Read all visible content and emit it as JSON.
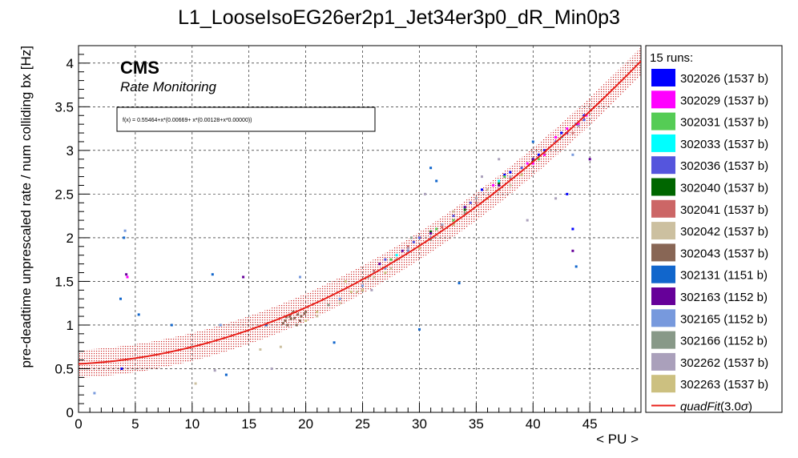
{
  "chart_data": {
    "type": "scatter",
    "title": "L1_LooseIsoEG26er2p1_Jet34er3p0_dR_Min0p3",
    "xlabel": "< PU >",
    "ylabel": "pre-deadtime unprescaled rate / num colliding bx [Hz]",
    "xlim": [
      0,
      49.5
    ],
    "ylim": [
      0,
      4.2
    ],
    "x_ticks": [
      0,
      5,
      10,
      15,
      20,
      25,
      30,
      35,
      40,
      45
    ],
    "y_ticks": [
      0,
      0.5,
      1,
      1.5,
      2,
      2.5,
      3,
      3.5,
      4
    ],
    "x_tick_labels": [
      "0",
      "5",
      "10",
      "15",
      "20",
      "25",
      "30",
      "35",
      "40",
      "45"
    ],
    "y_tick_labels": [
      "0",
      "0.5",
      "1",
      "1.5",
      "2",
      "2.5",
      "3",
      "3.5",
      "4"
    ],
    "grid": true,
    "legend_position": "right",
    "legend_header": "15 runs:",
    "cms_label": "CMS",
    "cms_sublabel": "Rate Monitoring",
    "fit_formula": "f(x) = 0.55464+x*(0.00669+ x*(0.00128+x*0.00000))",
    "fit": {
      "name": "quadFit",
      "label_sigma": "(3.0",
      "label_sigma_symbol": "σ",
      "label_close": ")",
      "coefficients": [
        0.55464,
        0.00669,
        0.00128,
        0.0
      ],
      "band_halfwidth": 0.16,
      "color": "#e8201a"
    },
    "series": [
      {
        "name": "302026 (1537 b)",
        "color": "#0000ff",
        "points": [
          [
            35.5,
            2.55
          ],
          [
            38,
            2.75
          ],
          [
            40.5,
            2.95
          ],
          [
            42.5,
            3.2
          ],
          [
            43.8,
            3.3
          ],
          [
            37.5,
            2.72
          ],
          [
            41,
            3.0
          ],
          [
            44.5,
            3.4
          ],
          [
            3.8,
            0.5
          ],
          [
            43.5,
            2.1
          ],
          [
            43,
            2.5
          ]
        ]
      },
      {
        "name": "302029 (1537 b)",
        "color": "#ff00ff",
        "points": [
          [
            40,
            2.85
          ],
          [
            42,
            3.15
          ],
          [
            43,
            3.25
          ],
          [
            44,
            3.3
          ],
          [
            41,
            2.95
          ],
          [
            39.5,
            2.85
          ],
          [
            4.3,
            1.55
          ],
          [
            36.5,
            2.6
          ],
          [
            44.7,
            3.4
          ]
        ]
      },
      {
        "name": "302031 (1537 b)",
        "color": "#55cc55",
        "points": [
          [
            27.5,
            1.75
          ],
          [
            30,
            2.0
          ],
          [
            33,
            2.2
          ],
          [
            35,
            2.45
          ],
          [
            37.5,
            2.7
          ],
          [
            40.5,
            2.9
          ],
          [
            31.5,
            2.1
          ]
        ]
      },
      {
        "name": "302033 (1537 b)",
        "color": "#00ffff",
        "points": [
          [
            28,
            1.8
          ],
          [
            31,
            2.05
          ],
          [
            34,
            2.35
          ],
          [
            37,
            2.65
          ],
          [
            40,
            2.9
          ],
          [
            42.5,
            3.15
          ]
        ]
      },
      {
        "name": "302036 (1537 b)",
        "color": "#5555dd",
        "points": [
          [
            27,
            1.75
          ],
          [
            30,
            2.0
          ],
          [
            33,
            2.25
          ],
          [
            36,
            2.55
          ],
          [
            39,
            2.8
          ],
          [
            42,
            3.1
          ],
          [
            44.5,
            3.35
          ],
          [
            29.5,
            1.95
          ],
          [
            32,
            2.15
          ],
          [
            34.5,
            2.4
          ]
        ]
      },
      {
        "name": "302040 (1537 b)",
        "color": "#006600",
        "points": [
          [
            31,
            2.07
          ],
          [
            34,
            2.32
          ],
          [
            37,
            2.62
          ],
          [
            40,
            2.88
          ]
        ]
      },
      {
        "name": "302041 (1537 b)",
        "color": "#cc6666",
        "points": [
          [
            26,
            1.62
          ],
          [
            29,
            1.9
          ],
          [
            32,
            2.12
          ],
          [
            35,
            2.4
          ],
          [
            38,
            2.68
          ],
          [
            41,
            2.97
          ],
          [
            43.5,
            3.2
          ]
        ]
      },
      {
        "name": "302042 (1537 b)",
        "color": "#ccc0a0",
        "points": [
          [
            16,
            0.72
          ],
          [
            21,
            1.1
          ],
          [
            23,
            1.25
          ],
          [
            24.5,
            1.38
          ],
          [
            26,
            1.55
          ],
          [
            27.5,
            1.65
          ],
          [
            33,
            2.3
          ],
          [
            36,
            2.55
          ],
          [
            10.3,
            0.33
          ],
          [
            17.8,
            0.75
          ],
          [
            38,
            2.6
          ]
        ]
      },
      {
        "name": "302043 (1537 b)",
        "color": "#886655",
        "points": [
          [
            18.2,
            1.05
          ],
          [
            18.6,
            1.1
          ],
          [
            19,
            1.08
          ],
          [
            19.3,
            1.12
          ],
          [
            18.4,
            1.0
          ],
          [
            18.9,
            1.15
          ],
          [
            19.6,
            1.1
          ],
          [
            19.9,
            1.13
          ],
          [
            18,
            1.02
          ],
          [
            18.7,
            1.07
          ],
          [
            19.2,
            1.0
          ],
          [
            20,
            1.15
          ],
          [
            19.5,
            1.05
          ],
          [
            18.3,
            1.09
          ]
        ]
      },
      {
        "name": "302131 (1151 b)",
        "color": "#1166cc",
        "points": [
          [
            3.7,
            1.3
          ],
          [
            5.3,
            1.12
          ],
          [
            8.2,
            1.0
          ],
          [
            11.8,
            1.58
          ],
          [
            16.5,
            1.0
          ],
          [
            22.5,
            0.8
          ],
          [
            30,
            0.95
          ],
          [
            33.5,
            1.48
          ],
          [
            40,
            3.1
          ],
          [
            43.8,
            1.67
          ],
          [
            31,
            2.8
          ],
          [
            31.5,
            2.65
          ],
          [
            13,
            0.43
          ],
          [
            4,
            2.0
          ]
        ]
      },
      {
        "name": "302163 (1152 b)",
        "color": "#660099",
        "points": [
          [
            26.5,
            1.7
          ],
          [
            28.5,
            1.85
          ],
          [
            31,
            2.05
          ],
          [
            34,
            2.35
          ],
          [
            37,
            2.6
          ],
          [
            40,
            2.9
          ],
          [
            43,
            3.2
          ],
          [
            4.2,
            1.58
          ],
          [
            14.5,
            1.55
          ],
          [
            43.5,
            1.85
          ],
          [
            45,
            2.9
          ]
        ]
      },
      {
        "name": "302165 (1152 b)",
        "color": "#7799dd",
        "points": [
          [
            23,
            1.3
          ],
          [
            25,
            1.45
          ],
          [
            27,
            1.65
          ],
          [
            29,
            1.85
          ],
          [
            31,
            2.0
          ],
          [
            43.5,
            2.95
          ],
          [
            4.1,
            2.08
          ],
          [
            12.5,
            1.0
          ],
          [
            19.5,
            1.55
          ],
          [
            1.4,
            0.22
          ]
        ]
      },
      {
        "name": "302166 (1152 b)",
        "color": "#889988",
        "points": [
          [
            25.5,
            1.55
          ],
          [
            28,
            1.75
          ],
          [
            31,
            1.98
          ],
          [
            34,
            2.28
          ],
          [
            37,
            2.55
          ],
          [
            29.3,
            2.0
          ],
          [
            22,
            1.23
          ]
        ]
      },
      {
        "name": "302262 (1537 b)",
        "color": "#aaa0bb",
        "points": [
          [
            26,
            1.6
          ],
          [
            29,
            1.88
          ],
          [
            32,
            2.15
          ],
          [
            35,
            2.45
          ],
          [
            38,
            2.7
          ],
          [
            41,
            2.98
          ],
          [
            44,
            3.28
          ],
          [
            39.5,
            2.2
          ],
          [
            42,
            2.45
          ],
          [
            25.8,
            1.4
          ],
          [
            17,
            0.5
          ],
          [
            12,
            0.48
          ],
          [
            30.5,
            2.5
          ],
          [
            35.5,
            2.7
          ],
          [
            37,
            2.9
          ]
        ]
      },
      {
        "name": "302263 (1537 b)",
        "color": "#ccc080",
        "points": [
          [
            21,
            1.15
          ],
          [
            24,
            1.38
          ],
          [
            27,
            1.6
          ],
          [
            30,
            1.88
          ],
          [
            33,
            2.15
          ],
          [
            36,
            2.45
          ],
          [
            39,
            2.72
          ],
          [
            20,
            1.05
          ],
          [
            25,
            1.4
          ],
          [
            23.5,
            1.5
          ]
        ]
      }
    ]
  }
}
